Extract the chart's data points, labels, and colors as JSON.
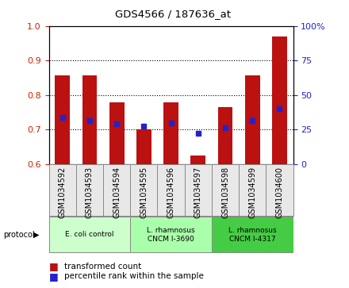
{
  "title": "GDS4566 / 187636_at",
  "categories": [
    "GSM1034592",
    "GSM1034593",
    "GSM1034594",
    "GSM1034595",
    "GSM1034596",
    "GSM1034597",
    "GSM1034598",
    "GSM1034599",
    "GSM1034600"
  ],
  "transformed_count": [
    0.856,
    0.856,
    0.778,
    0.7,
    0.778,
    0.625,
    0.766,
    0.856,
    0.97
  ],
  "percentile_rank": [
    0.735,
    0.726,
    0.716,
    0.71,
    0.72,
    0.69,
    0.706,
    0.726,
    0.76
  ],
  "bar_bottom": 0.6,
  "ylim": [
    0.6,
    1.0
  ],
  "right_ylim": [
    0,
    100
  ],
  "right_yticks": [
    0,
    25,
    50,
    75,
    100
  ],
  "right_yticklabels": [
    "0",
    "25",
    "50",
    "75",
    "100%"
  ],
  "left_yticks": [
    0.6,
    0.7,
    0.8,
    0.9,
    1.0
  ],
  "bar_color": "#bb1111",
  "dot_color": "#2222cc",
  "protocols": [
    {
      "label": "E. coli control",
      "indices": [
        0,
        1,
        2
      ],
      "color": "#ccffcc"
    },
    {
      "label": "L. rhamnosus\nCNCM I-3690",
      "indices": [
        3,
        4,
        5
      ],
      "color": "#aaffaa"
    },
    {
      "label": "L. rhamnosus\nCNCM I-4317",
      "indices": [
        6,
        7,
        8
      ],
      "color": "#44cc44"
    }
  ],
  "fig_width": 4.4,
  "fig_height": 3.63,
  "dpi": 100
}
